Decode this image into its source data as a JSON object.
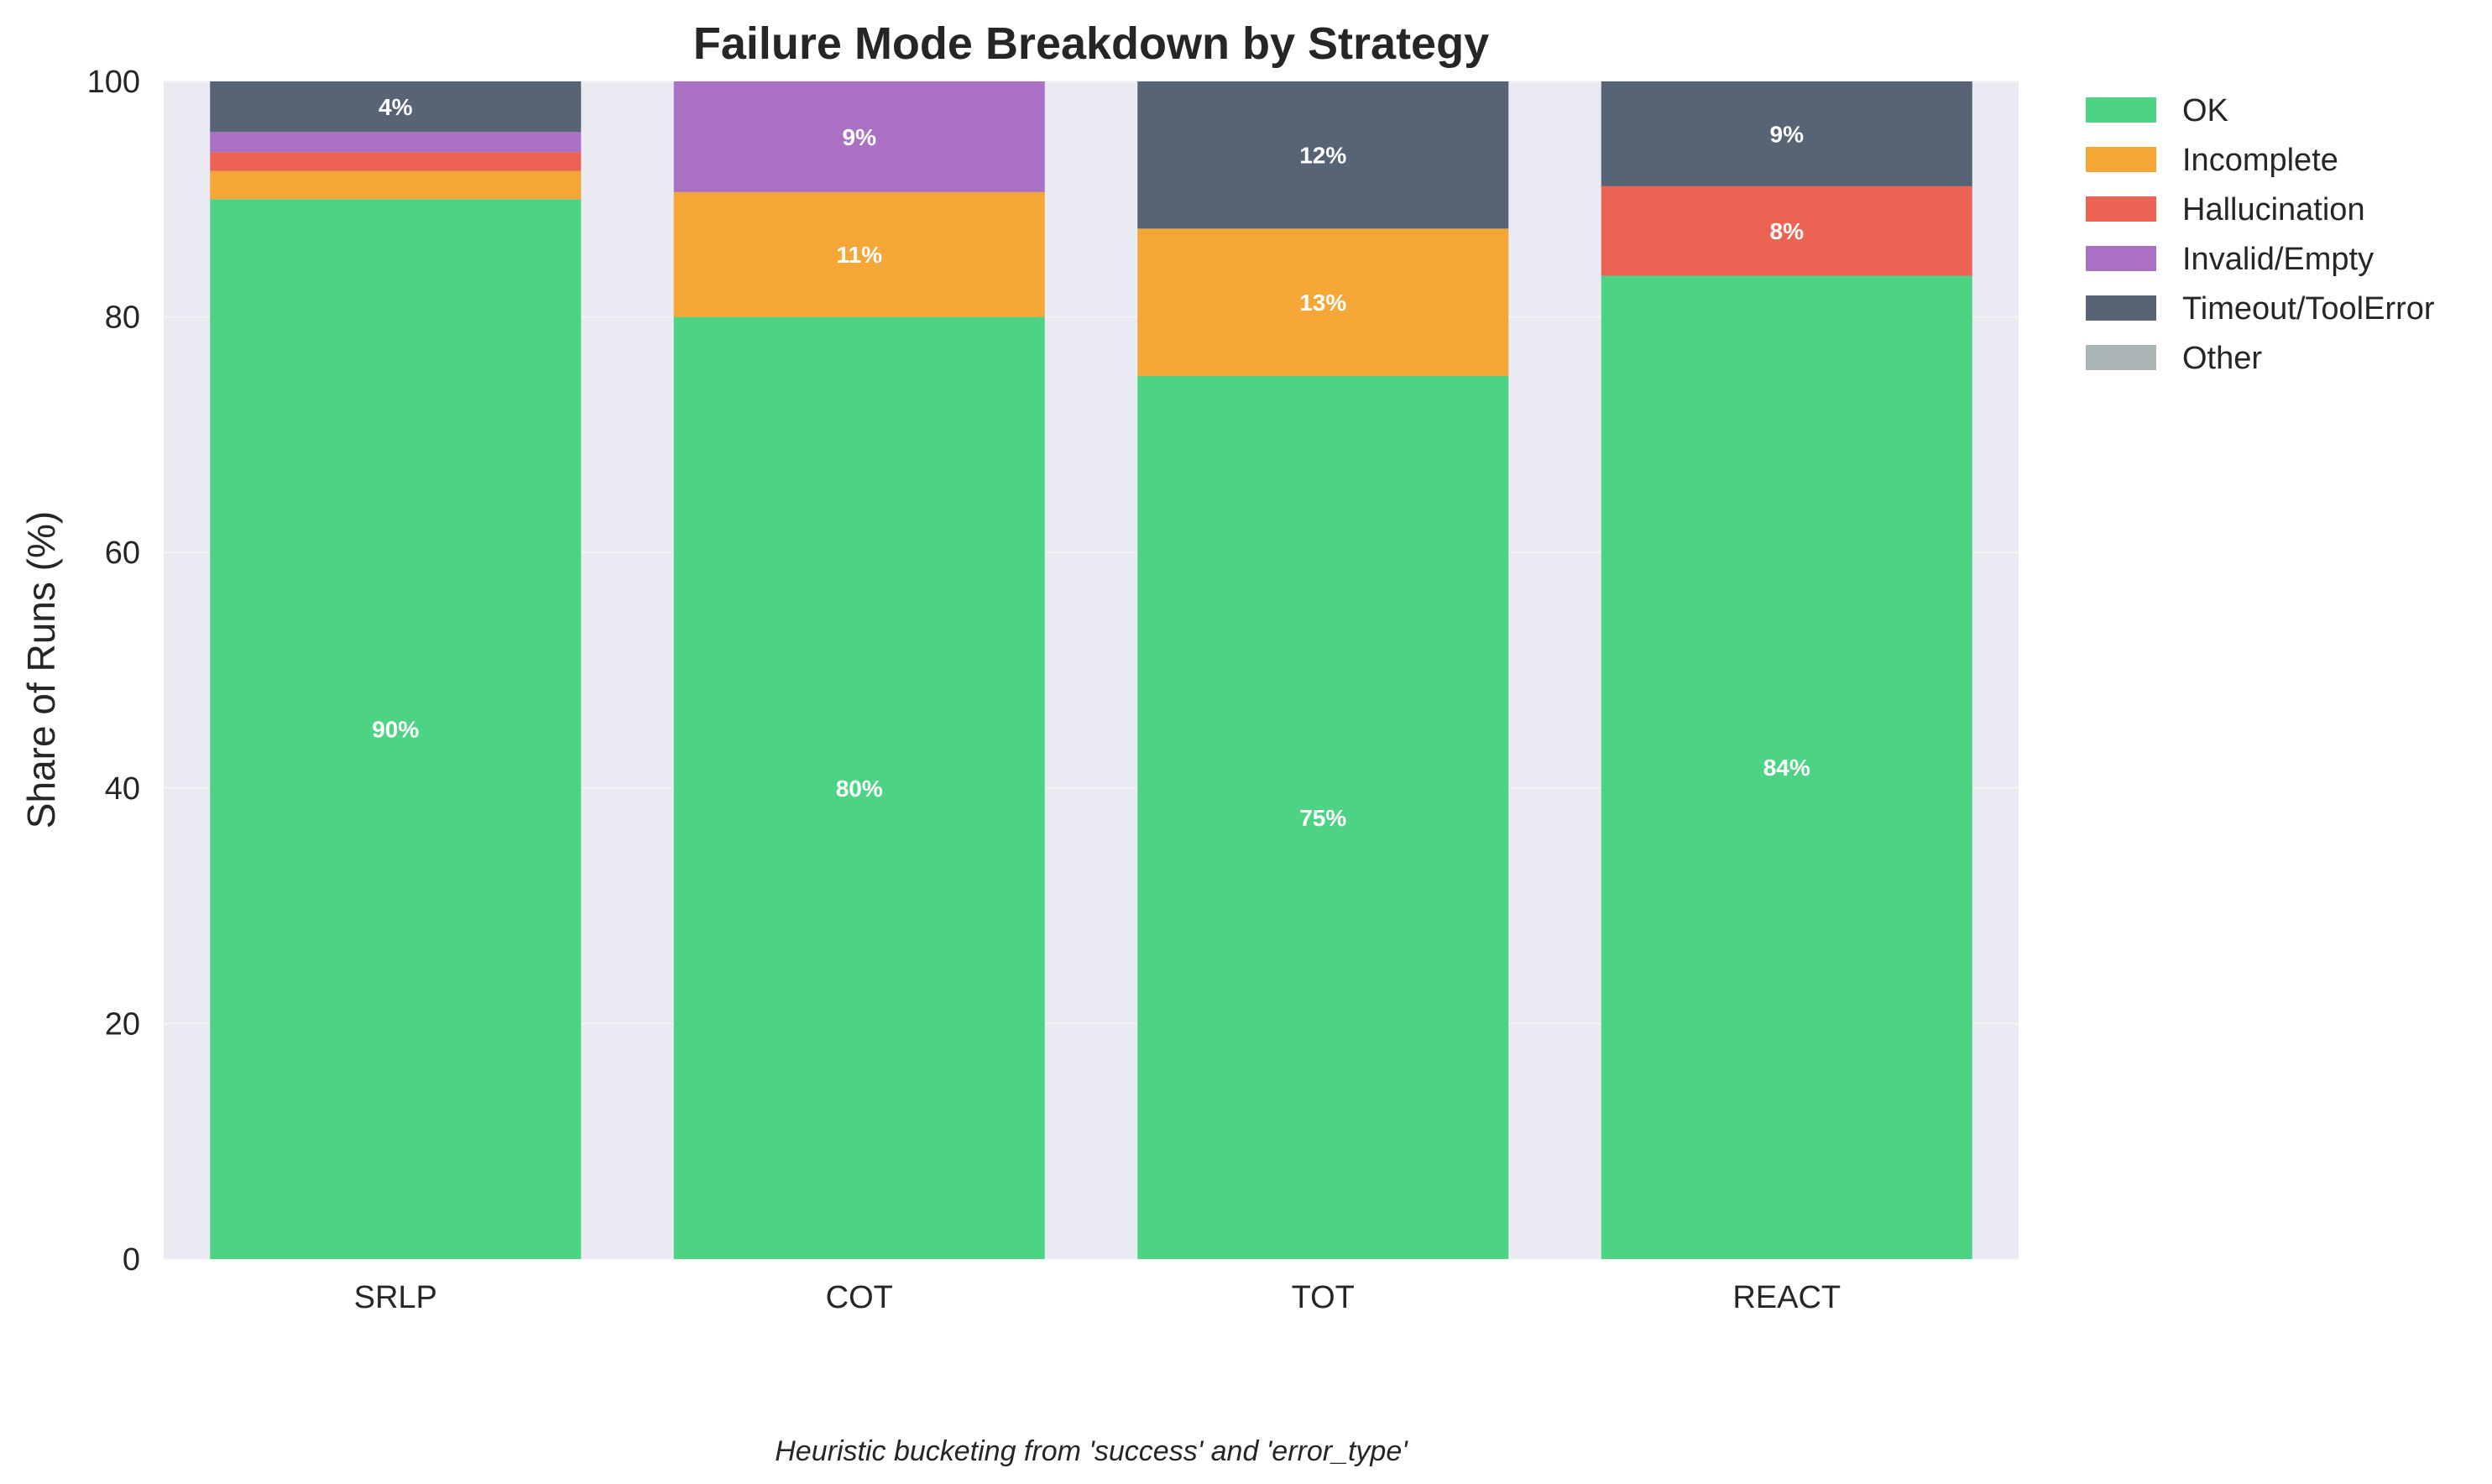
{
  "chart_data": {
    "type": "bar",
    "stacked": true,
    "title": "Failure Mode Breakdown by Strategy",
    "xlabel": "",
    "ylabel": "Share of Runs (%)",
    "ylim": [
      0,
      100
    ],
    "yticks": [
      "0",
      "20",
      "40",
      "60",
      "80",
      "100"
    ],
    "grid": true,
    "legend_position": "right, outside top",
    "caption": "Heuristic bucketing from 'success' and 'error_type'",
    "categories": [
      "SRLP",
      "COT",
      "TOT",
      "REACT"
    ],
    "series": [
      {
        "name": "OK",
        "color": "#4cd484",
        "values": [
          90.0,
          80.0,
          75.0,
          83.5
        ],
        "labels": [
          "90%",
          "80%",
          "75%",
          "84%"
        ]
      },
      {
        "name": "Incomplete",
        "color": "#f4a637",
        "values": [
          2.4,
          10.6,
          12.5,
          0.0
        ],
        "labels": [
          "",
          "11%",
          "13%",
          ""
        ]
      },
      {
        "name": "Hallucination",
        "color": "#ea6353",
        "values": [
          1.6,
          0.0,
          0.0,
          7.6
        ],
        "labels": [
          "",
          "",
          "",
          "8%"
        ]
      },
      {
        "name": "Invalid/Empty",
        "color": "#a970c4",
        "values": [
          1.7,
          9.4,
          0.0,
          0.0
        ],
        "labels": [
          "",
          "9%",
          "",
          ""
        ]
      },
      {
        "name": "Timeout/ToolError",
        "color": "#566475",
        "values": [
          4.3,
          0.0,
          12.5,
          8.9
        ],
        "labels": [
          "4%",
          "",
          "12%",
          "9%"
        ]
      },
      {
        "name": "Other",
        "color": "#aab5b6",
        "values": [
          0,
          0,
          0,
          0
        ],
        "labels": [
          "",
          "",
          "",
          ""
        ]
      }
    ]
  }
}
